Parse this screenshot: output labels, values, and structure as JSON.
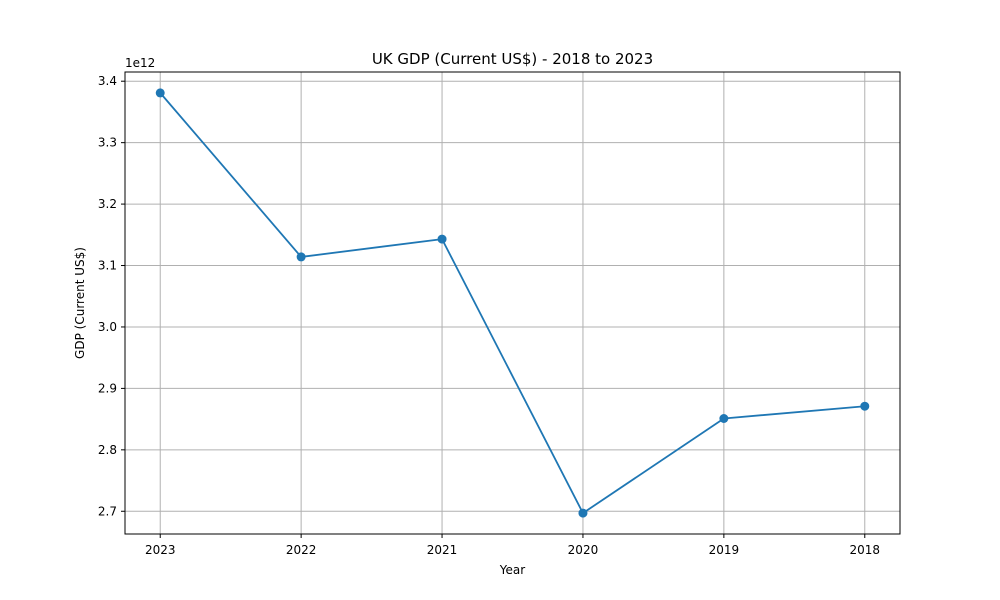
{
  "chart_data": {
    "type": "line",
    "title": "UK GDP (Current US$) - 2018 to 2023",
    "xlabel": "Year",
    "ylabel": "GDP (Current US$)",
    "y_offset_label": "1e12",
    "categories": [
      "2023",
      "2022",
      "2021",
      "2020",
      "2019",
      "2018"
    ],
    "series": [
      {
        "values": [
          3381000000000.0,
          3114000000000.0,
          3143000000000.0,
          2697000000000.0,
          2851000000000.0,
          2871000000000.0
        ],
        "color": "#1f77b4",
        "marker": "circle"
      }
    ],
    "yticks": [
      2700000000000.0,
      2800000000000.0,
      2900000000000.0,
      3000000000000.0,
      3100000000000.0,
      3200000000000.0,
      3300000000000.0,
      3400000000000.0
    ],
    "ytick_labels": [
      "2.7",
      "2.8",
      "2.9",
      "3.0",
      "3.1",
      "3.2",
      "3.3",
      "3.4"
    ],
    "ylim": [
      2663000000000.0,
      3415000000000.0
    ],
    "grid": true
  }
}
